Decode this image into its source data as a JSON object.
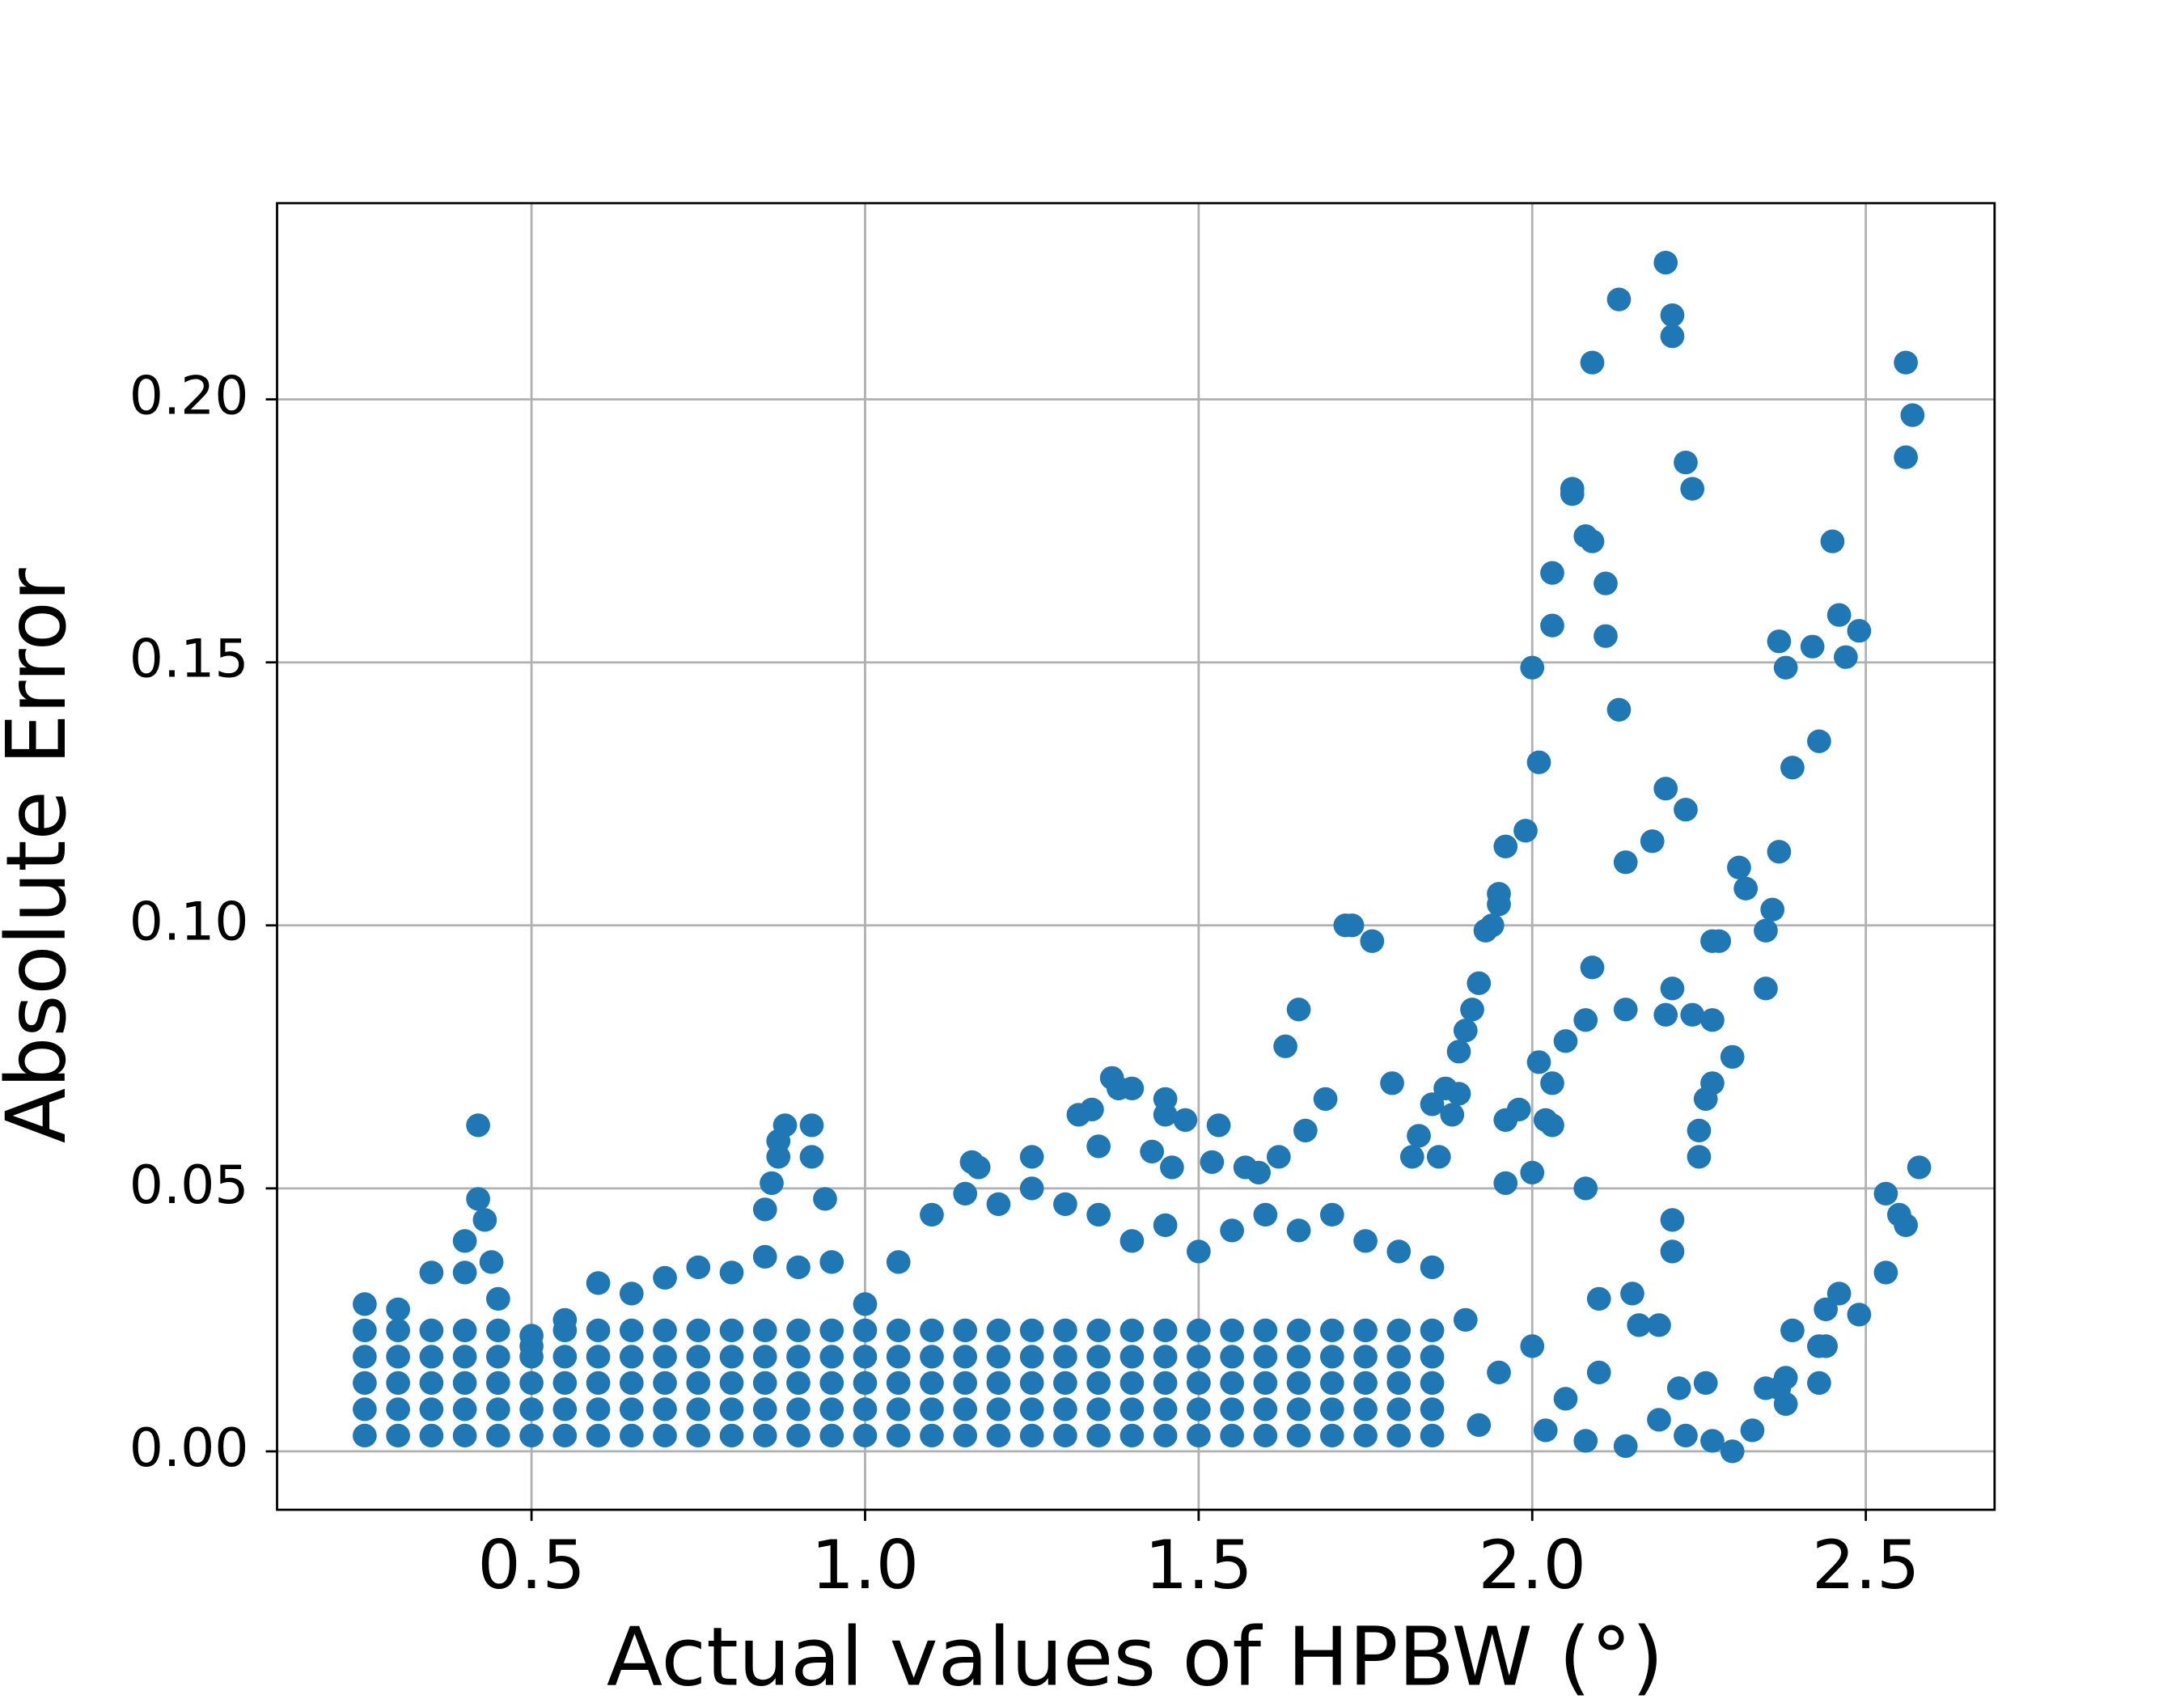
{
  "chart_data": {
    "type": "scatter",
    "x_label": "Actual values of HPBW (°)",
    "y_label": "Absolute Error",
    "color": "#1f77b4",
    "grid": true,
    "xlim": [
      0.1186,
      2.693
    ],
    "ylim": [
      -0.0111,
      0.2373
    ],
    "xticks": [
      0.5,
      {
        "value": 1,
        "label": "1.0"
      },
      1.5,
      {
        "value": 2,
        "label": "2.0"
      },
      2.5
    ],
    "yticks": [
      {
        "value": 0,
        "label": "0.00"
      },
      {
        "value": 0.05,
        "label": "0.05"
      },
      {
        "value": 0.1,
        "label": "0.10"
      },
      {
        "value": 0.15,
        "label": "0.15"
      },
      {
        "value": 0.2,
        "label": "0.20"
      }
    ],
    "x": [
      0.25,
      0.3,
      0.35,
      0.4,
      0.45,
      0.5,
      0.55,
      0.6,
      0.65,
      0.7,
      0.75,
      0.8,
      0.85,
      0.9,
      0.95,
      1,
      1.05,
      1.1,
      1.15,
      1.2,
      1.25,
      1.3,
      1.35,
      1.4,
      1.45,
      1.5,
      1.55,
      1.6,
      1.65,
      1.7,
      1.75,
      1.8,
      1.85,
      0.25,
      0.3,
      0.35,
      0.4,
      0.45,
      0.5,
      0.55,
      0.6,
      0.65,
      0.7,
      0.75,
      0.8,
      0.85,
      0.9,
      0.95,
      1,
      1.05,
      1.1,
      1.15,
      1.2,
      1.25,
      1.3,
      1.35,
      1.4,
      1.45,
      1.5,
      1.55,
      1.6,
      1.65,
      1.7,
      1.75,
      1.8,
      1.85,
      0.25,
      0.3,
      0.35,
      0.4,
      0.45,
      0.5,
      0.55,
      0.6,
      0.65,
      0.7,
      0.75,
      0.8,
      0.85,
      0.9,
      0.95,
      1,
      1.05,
      1.1,
      1.15,
      1.2,
      1.25,
      1.3,
      1.35,
      1.4,
      1.45,
      1.5,
      1.55,
      1.6,
      1.65,
      1.7,
      1.75,
      1.8,
      1.85,
      0.25,
      0.3,
      0.35,
      0.4,
      0.45,
      0.5,
      0.55,
      0.6,
      0.65,
      0.7,
      0.75,
      0.8,
      0.85,
      0.9,
      0.95,
      1,
      1.05,
      1.1,
      1.15,
      1.2,
      1.25,
      1.3,
      1.35,
      1.4,
      1.45,
      1.5,
      1.55,
      1.6,
      1.65,
      1.7,
      1.75,
      1.8,
      1.85,
      0.25,
      0.3,
      0.35,
      0.4,
      0.45,
      0.5,
      0.55,
      0.6,
      0.65,
      0.7,
      0.75,
      0.8,
      0.85,
      0.9,
      0.95,
      1,
      1.05,
      1.1,
      1.15,
      1.2,
      1.25,
      1.3,
      1.35,
      1.4,
      1.45,
      1.5,
      1.55,
      1.6,
      1.65,
      1.7,
      1.75,
      1.8,
      1.85,
      0.25,
      0.3,
      0.35,
      0.4,
      0.45,
      0.5,
      0.55,
      0.6,
      0.65,
      0.7,
      0.75,
      0.8,
      0.85,
      0.9,
      0.95,
      1,
      1.05,
      1.1,
      1.15,
      1.2,
      1.25,
      1.3,
      1.35,
      1.4,
      1.45,
      1.5,
      1.55,
      1.6,
      1.65,
      1.7,
      1.75,
      1.8,
      1.85,
      0.42,
      0.42,
      0.43,
      0.4,
      0.44,
      0.88,
      0.92,
      0.87,
      0.92,
      0.87,
      0.94,
      0.86,
      0.85,
      1.16,
      1.17,
      1.25,
      1.32,
      1.34,
      1.37,
      1.38,
      1.4,
      1.35,
      1.43,
      1.45,
      1.45,
      1.48,
      1.53,
      1.46,
      1.52,
      1.57,
      1.59,
      1.63,
      1.65,
      1.66,
      1.69,
      1.72,
      1.73,
      1.76,
      1.62,
      1.79,
      1.82,
      1.83,
      1.85,
      1.86,
      1.87,
      1.88,
      1.89,
      1.89,
      1.9,
      1.91,
      1.92,
      1.93,
      1.94,
      1.95,
      1.95,
      1.96,
      1.96,
      1.96,
      1.99,
      1.98,
      2,
      2,
      2.01,
      2.01,
      2.02,
      2.03,
      2.03,
      2.03,
      2.03,
      2.05,
      2.06,
      2.06,
      2.08,
      2.09,
      2.09,
      2.08,
      2.09,
      2.08,
      2.11,
      2.11,
      2.13,
      2.13,
      2.14,
      2.14,
      2.18,
      2.2,
      2.2,
      2.21,
      2.21,
      2.23,
      2.24,
      2.23,
      2.21,
      2.2,
      2.24,
      2.27,
      2.26,
      2.27,
      2.25,
      2.25,
      2.27,
      2.28,
      2.3,
      2.31,
      2.32,
      2.35,
      2.35,
      2.36,
      2.37,
      2.38,
      2.37,
      2.39,
      2.42,
      2.43,
      2.45,
      2.46,
      2.47,
      2.49,
      2.21,
      2.21,
      2.56,
      2.56,
      2.57,
      2.58,
      2.53,
      2.55,
      2.56,
      2.53,
      2.49,
      2.46,
      2.44,
      2.43,
      2.44,
      2.43,
      2.39,
      2.38,
      2.38,
      2.37,
      2.35,
      2.33,
      2.3,
      2.27,
      2.26,
      2.23,
      2.22,
      2.19,
      2.14,
      2.16,
      2.15,
      2.19,
      2.1,
      1.9,
      1.95,
      2,
      2.05,
      2.1,
      1.92,
      2.02,
      2.08
    ],
    "values": [
      0.003,
      0.003,
      0.003,
      0.003,
      0.003,
      0.003,
      0.003,
      0.003,
      0.003,
      0.003,
      0.003,
      0.003,
      0.003,
      0.003,
      0.003,
      0.003,
      0.003,
      0.003,
      0.003,
      0.003,
      0.003,
      0.003,
      0.003,
      0.003,
      0.003,
      0.003,
      0.003,
      0.003,
      0.003,
      0.003,
      0.003,
      0.003,
      0.003,
      0.008,
      0.008,
      0.008,
      0.008,
      0.008,
      0.008,
      0.008,
      0.008,
      0.008,
      0.008,
      0.008,
      0.008,
      0.008,
      0.008,
      0.008,
      0.008,
      0.008,
      0.008,
      0.008,
      0.008,
      0.008,
      0.008,
      0.008,
      0.008,
      0.008,
      0.008,
      0.008,
      0.008,
      0.008,
      0.008,
      0.008,
      0.008,
      0.008,
      0.013,
      0.013,
      0.013,
      0.013,
      0.013,
      0.013,
      0.013,
      0.013,
      0.013,
      0.013,
      0.013,
      0.013,
      0.013,
      0.013,
      0.013,
      0.013,
      0.013,
      0.013,
      0.013,
      0.013,
      0.013,
      0.013,
      0.013,
      0.013,
      0.013,
      0.013,
      0.013,
      0.013,
      0.013,
      0.013,
      0.013,
      0.013,
      0.013,
      0.018,
      0.018,
      0.018,
      0.018,
      0.018,
      0.018,
      0.018,
      0.018,
      0.018,
      0.018,
      0.018,
      0.018,
      0.018,
      0.018,
      0.018,
      0.018,
      0.018,
      0.018,
      0.018,
      0.018,
      0.018,
      0.018,
      0.018,
      0.018,
      0.018,
      0.018,
      0.018,
      0.018,
      0.018,
      0.018,
      0.018,
      0.018,
      0.018,
      0.023,
      0.023,
      0.023,
      0.023,
      0.023,
      0.02,
      0.023,
      0.023,
      0.023,
      0.023,
      0.023,
      0.023,
      0.023,
      0.023,
      0.023,
      0.023,
      0.023,
      0.023,
      0.023,
      0.023,
      0.023,
      0.023,
      0.023,
      0.023,
      0.023,
      0.023,
      0.023,
      0.023,
      0.023,
      0.023,
      0.023,
      0.023,
      0.023,
      0.028,
      0.027,
      0.034,
      0.034,
      0.029,
      0.022,
      0.025,
      0.032,
      0.03,
      0.033,
      0.035,
      0.034,
      0.037,
      0.035,
      0.036,
      0.028,
      0.036,
      0.045,
      0.049,
      0.047,
      0.05,
      0.047,
      0.045,
      0.04,
      0.043,
      0.038,
      0.042,
      0.045,
      0.042,
      0.045,
      0.04,
      0.038,
      0.035,
      0.062,
      0.048,
      0.044,
      0.04,
      0.036,
      0.062,
      0.062,
      0.059,
      0.056,
      0.056,
      0.048,
      0.051,
      0.046,
      0.055,
      0.054,
      0.056,
      0.064,
      0.065,
      0.071,
      0.069,
      0.069,
      0.058,
      0.057,
      0.067,
      0.064,
      0.063,
      0.062,
      0.054,
      0.055,
      0.054,
      0.053,
      0.077,
      0.084,
      0.061,
      0.067,
      0.1,
      0.1,
      0.097,
      0.056,
      0.07,
      0.056,
      0.06,
      0.066,
      0.056,
      0.069,
      0.064,
      0.068,
      0.076,
      0.08,
      0.084,
      0.089,
      0.099,
      0.1,
      0.104,
      0.106,
      0.115,
      0.063,
      0.051,
      0.118,
      0.065,
      0.053,
      0.149,
      0.131,
      0.074,
      0.063,
      0.062,
      0.07,
      0.157,
      0.167,
      0.078,
      0.182,
      0.183,
      0.174,
      0.173,
      0.207,
      0.082,
      0.092,
      0.05,
      0.165,
      0.155,
      0.141,
      0.219,
      0.112,
      0.084,
      0.116,
      0.126,
      0.226,
      0.216,
      0.212,
      0.188,
      0.183,
      0.122,
      0.088,
      0.083,
      0.083,
      0.082,
      0.067,
      0.07,
      0.061,
      0.056,
      0.097,
      0.097,
      0.075,
      0.111,
      0.107,
      0.099,
      0.088,
      0.103,
      0.154,
      0.149,
      0.114,
      0.13,
      0.153,
      0.135,
      0.173,
      0.159,
      0.151,
      0.156,
      0.044,
      0.038,
      0.189,
      0.207,
      0.197,
      0.054,
      0.049,
      0.045,
      0.043,
      0.034,
      0.026,
      0.03,
      0.027,
      0.02,
      0.02,
      0.013,
      0.023,
      0.014,
      0.009,
      0.012,
      0.012,
      0.004,
      0,
      0.002,
      0.013,
      0.003,
      0.012,
      0.006,
      0.001,
      0.024,
      0.03,
      0.024,
      0.029,
      0.025,
      0.015,
      0.02,
      0.01,
      0.015,
      0.005,
      0.004,
      0.002
    ]
  }
}
